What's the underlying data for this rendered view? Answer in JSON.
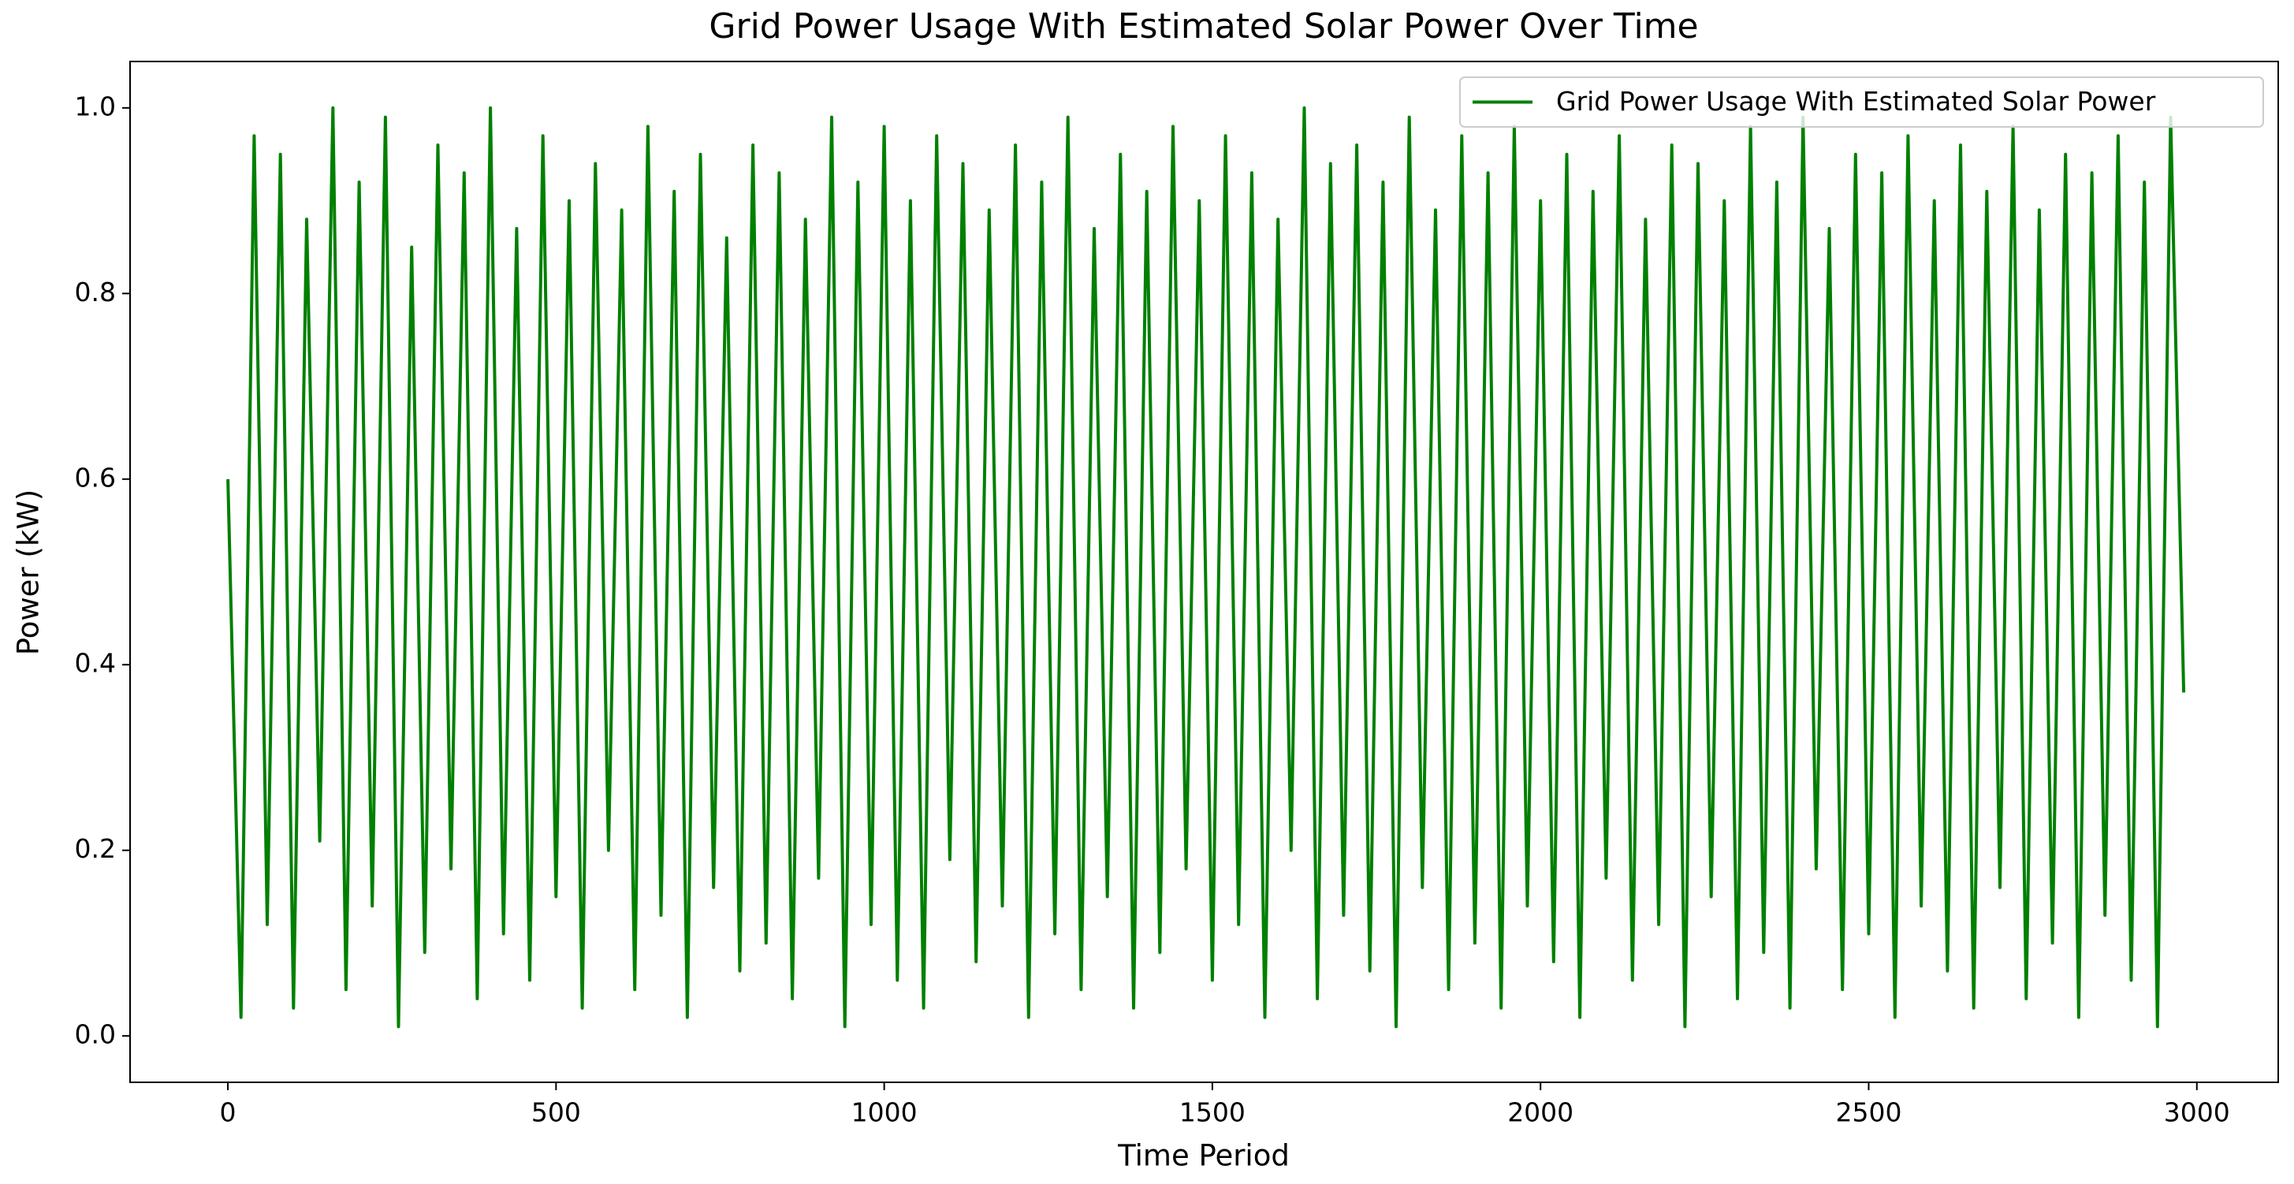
{
  "chart_data": {
    "type": "line",
    "title": "Grid Power Usage With Estimated Solar Power Over Time",
    "xlabel": "Time Period",
    "ylabel": "Power (kW)",
    "legend": "upper right",
    "x": [
      0,
      20,
      40,
      60,
      80,
      100,
      120,
      140,
      160,
      180,
      200,
      220,
      240,
      260,
      280,
      300,
      320,
      340,
      360,
      380,
      400,
      420,
      440,
      460,
      480,
      500,
      520,
      540,
      560,
      580,
      600,
      620,
      640,
      660,
      680,
      700,
      720,
      740,
      760,
      780,
      800,
      820,
      840,
      860,
      880,
      900,
      920,
      940,
      960,
      980,
      1000,
      1020,
      1040,
      1060,
      1080,
      1100,
      1120,
      1140,
      1160,
      1180,
      1200,
      1220,
      1240,
      1260,
      1280,
      1300,
      1320,
      1340,
      1360,
      1380,
      1400,
      1420,
      1440,
      1460,
      1480,
      1500,
      1520,
      1540,
      1560,
      1580,
      1600,
      1620,
      1640,
      1660,
      1680,
      1700,
      1720,
      1740,
      1760,
      1780,
      1800,
      1820,
      1840,
      1860,
      1880,
      1900,
      1920,
      1940,
      1960,
      1980,
      2000,
      2020,
      2040,
      2060,
      2080,
      2100,
      2120,
      2140,
      2160,
      2180,
      2200,
      2220,
      2240,
      2260,
      2280,
      2300,
      2320,
      2340,
      2360,
      2380,
      2400,
      2420,
      2440,
      2460,
      2480,
      2500,
      2520,
      2540,
      2560,
      2580,
      2600,
      2620,
      2640,
      2660,
      2680,
      2700,
      2720,
      2740,
      2760,
      2780,
      2800,
      2820,
      2840,
      2860,
      2880,
      2900,
      2920,
      2940,
      2960,
      2980
    ],
    "series": [
      {
        "name": "Grid Power Usage With Estimated Solar Power",
        "color": "#008000",
        "values": [
          0.6,
          0.02,
          0.97,
          0.12,
          0.95,
          0.03,
          0.88,
          0.21,
          1.0,
          0.05,
          0.92,
          0.14,
          0.99,
          0.01,
          0.85,
          0.09,
          0.96,
          0.18,
          0.93,
          0.04,
          1.0,
          0.11,
          0.87,
          0.06,
          0.97,
          0.15,
          0.9,
          0.03,
          0.94,
          0.2,
          0.89,
          0.05,
          0.98,
          0.13,
          0.91,
          0.02,
          0.95,
          0.16,
          0.86,
          0.07,
          0.96,
          0.1,
          0.93,
          0.04,
          0.88,
          0.17,
          0.99,
          0.01,
          0.92,
          0.12,
          0.98,
          0.06,
          0.9,
          0.03,
          0.97,
          0.19,
          0.94,
          0.08,
          0.89,
          0.14,
          0.96,
          0.02,
          0.92,
          0.11,
          0.99,
          0.05,
          0.87,
          0.15,
          0.95,
          0.03,
          0.91,
          0.09,
          0.98,
          0.18,
          0.9,
          0.06,
          0.97,
          0.12,
          0.93,
          0.02,
          0.88,
          0.2,
          1.0,
          0.04,
          0.94,
          0.13,
          0.96,
          0.07,
          0.92,
          0.01,
          0.99,
          0.16,
          0.89,
          0.05,
          0.97,
          0.1,
          0.93,
          0.03,
          0.98,
          0.14,
          0.9,
          0.08,
          0.95,
          0.02,
          0.91,
          0.17,
          0.97,
          0.06,
          0.88,
          0.12,
          0.96,
          0.01,
          0.94,
          0.15,
          0.9,
          0.04,
          0.98,
          0.09,
          0.92,
          0.03,
          0.99,
          0.18,
          0.87,
          0.05,
          0.95,
          0.11,
          0.93,
          0.02,
          0.97,
          0.14,
          0.9,
          0.07,
          0.96,
          0.03,
          0.91,
          0.16,
          0.98,
          0.04,
          0.89,
          0.1,
          0.95,
          0.02,
          0.93,
          0.13,
          0.97,
          0.06,
          0.92,
          0.01,
          0.99,
          0.37
        ]
      }
    ],
    "xlim": [
      -149,
      3124
    ],
    "ylim": [
      -0.05,
      1.05
    ],
    "xticks": [
      0,
      500,
      1000,
      1500,
      2000,
      2500,
      3000
    ],
    "yticks": [
      {
        "value": 0,
        "label": "0.0"
      },
      0.2,
      0.4,
      0.6,
      0.8,
      {
        "value": 1,
        "label": "1.0"
      }
    ]
  }
}
